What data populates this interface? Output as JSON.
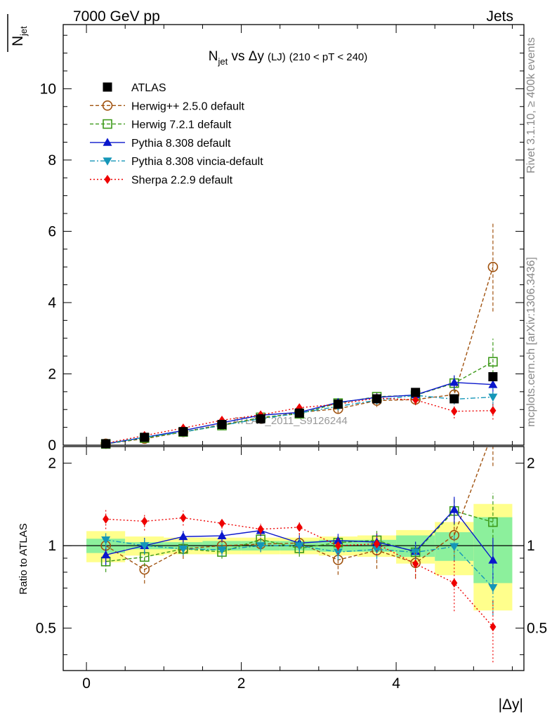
{
  "header": {
    "left": "7000 GeV pp",
    "right": "Jets"
  },
  "side_labels": {
    "rivet": "Rivet 3.1.10, ≥ 400k events",
    "mcplots": "mcplots.cern.ch [arXiv:1306.3436]"
  },
  "chart_data": {
    "type": "line",
    "title": {
      "prefix": "N",
      "prefix_sub": "jet",
      "middle": " vs Δy",
      "small": "(LJ)",
      "suffix": "(210 < pT < 240)"
    },
    "watermark": "ATLAS_2011_S9126244",
    "ylabel": {
      "main": "N",
      "sub": "jet"
    },
    "ratio_ylabel": "Ratio to ATLAS",
    "xlabel": "|Δy|",
    "xlim": [
      -0.3,
      5.65
    ],
    "ylim": [
      0,
      11.8
    ],
    "ratio_ylim": [
      0.35,
      2.3
    ],
    "x_ticks": [
      {
        "v": 0,
        "label": "0"
      },
      {
        "v": 2,
        "label": "2"
      },
      {
        "v": 4,
        "label": "4"
      }
    ],
    "y_ticks": [
      {
        "v": 0,
        "label": "0"
      },
      {
        "v": 2,
        "label": "2"
      },
      {
        "v": 4,
        "label": "4"
      },
      {
        "v": 6,
        "label": "6"
      },
      {
        "v": 8,
        "label": "8"
      },
      {
        "v": 10,
        "label": "10"
      }
    ],
    "ratio_ticks": [
      {
        "v": 0.5,
        "label": "0.5"
      },
      {
        "v": 1,
        "label": "1"
      },
      {
        "v": 2,
        "label": "2"
      }
    ],
    "x": [
      0.25,
      0.75,
      1.25,
      1.75,
      2.25,
      2.75,
      3.25,
      3.75,
      4.25,
      4.75,
      5.25
    ],
    "bin_edges": [
      0,
      0.5,
      1.0,
      1.5,
      2.0,
      2.5,
      3.0,
      3.5,
      4.0,
      4.5,
      5.0,
      5.5
    ],
    "band_inner": [
      0.06,
      0.03,
      0.03,
      0.04,
      0.04,
      0.04,
      0.05,
      0.05,
      0.09,
      0.12,
      0.27
    ],
    "band_outer": [
      0.13,
      0.08,
      0.07,
      0.07,
      0.07,
      0.07,
      0.08,
      0.09,
      0.14,
      0.22,
      0.42
    ],
    "data": {
      "name": "ATLAS",
      "values": [
        0.04,
        0.22,
        0.38,
        0.58,
        0.74,
        0.9,
        1.15,
        1.3,
        1.48,
        1.3,
        1.92
      ]
    },
    "series": [
      {
        "name": "Herwig++ 2.5.0 default",
        "color": "#a0520f",
        "marker": "circle-open",
        "dash": "5,3",
        "values": [
          0.04,
          0.18,
          0.37,
          0.58,
          0.75,
          0.92,
          1.02,
          1.25,
          1.28,
          1.42,
          5.0
        ],
        "errors": [
          0.003,
          0.02,
          0.03,
          0.04,
          0.05,
          0.07,
          0.12,
          0.18,
          0.15,
          0.25,
          1.25
        ]
      },
      {
        "name": "Herwig 7.2.1 default",
        "color": "#3d9a1a",
        "marker": "square-open",
        "dash": "5,3",
        "values": [
          0.035,
          0.2,
          0.37,
          0.55,
          0.78,
          0.88,
          1.18,
          1.36,
          1.4,
          1.74,
          2.34
        ],
        "errors": [
          0.003,
          0.015,
          0.02,
          0.03,
          0.05,
          0.06,
          0.08,
          0.12,
          0.12,
          0.2,
          0.65
        ]
      },
      {
        "name": "Pythia 8.308 default",
        "color": "#0a17cc",
        "marker": "triangle-up",
        "dash": "",
        "values": [
          0.037,
          0.22,
          0.41,
          0.63,
          0.84,
          0.92,
          1.2,
          1.34,
          1.41,
          1.76,
          1.7
        ],
        "errors": [
          0.003,
          0.015,
          0.02,
          0.03,
          0.04,
          0.06,
          0.07,
          0.1,
          0.12,
          0.2,
          0.35
        ]
      },
      {
        "name": "Pythia 8.308 vincia-default",
        "color": "#1596b8",
        "marker": "triangle-down",
        "dash": "7,3,2,3",
        "values": [
          0.042,
          0.22,
          0.37,
          0.56,
          0.74,
          0.9,
          1.09,
          1.26,
          1.4,
          1.29,
          1.35
        ],
        "errors": [
          0.003,
          0.015,
          0.02,
          0.03,
          0.04,
          0.06,
          0.07,
          0.1,
          0.12,
          0.15,
          0.28
        ]
      },
      {
        "name": "Sherpa 2.2.9 default",
        "color": "#ee0000",
        "marker": "diamond",
        "dash": "2,3",
        "values": [
          0.05,
          0.27,
          0.48,
          0.7,
          0.85,
          1.05,
          1.15,
          1.32,
          1.27,
          0.95,
          0.97
        ],
        "errors": [
          0.004,
          0.02,
          0.03,
          0.03,
          0.04,
          0.06,
          0.08,
          0.12,
          0.15,
          0.2,
          0.25
        ]
      }
    ]
  }
}
